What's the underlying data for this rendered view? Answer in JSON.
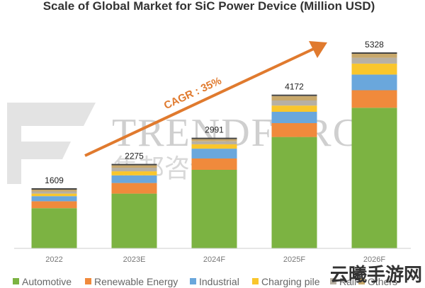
{
  "chart_data": {
    "type": "bar",
    "stacked": true,
    "title": "Scale of Global Market for SiC Power Device (Million USD)",
    "categories": [
      "2022",
      "2023E",
      "2024F",
      "2025F",
      "2026F"
    ],
    "totals": [
      1609,
      2275,
      2991,
      4172,
      5328
    ],
    "series": [
      {
        "name": "Automotive",
        "color": "#7cb342",
        "values": [
          1100,
          1500,
          2150,
          3050,
          3850
        ]
      },
      {
        "name": "Renewable Energy",
        "color": "#f08a3c",
        "values": [
          190,
          290,
          310,
          380,
          480
        ]
      },
      {
        "name": "Industrial",
        "color": "#6aa7dc",
        "values": [
          140,
          210,
          270,
          310,
          430
        ]
      },
      {
        "name": "Charging pile",
        "color": "#f9c62c",
        "values": [
          70,
          110,
          120,
          170,
          300
        ]
      },
      {
        "name": "Rail",
        "color": "#b7b0a3",
        "values": [
          60,
          100,
          80,
          140,
          160
        ]
      },
      {
        "name": "Others",
        "color": "#c8a86b",
        "values": [
          49,
          65,
          61,
          122,
          108
        ]
      }
    ],
    "ylim": [
      0,
      5600
    ],
    "grid": false,
    "legend_position": "bottom",
    "annotation": "CAGR : 35%"
  },
  "watermark": {
    "brand": "TRENDFORCE",
    "cn": "集邦咨询"
  },
  "corner_mark": "云曦手游网"
}
